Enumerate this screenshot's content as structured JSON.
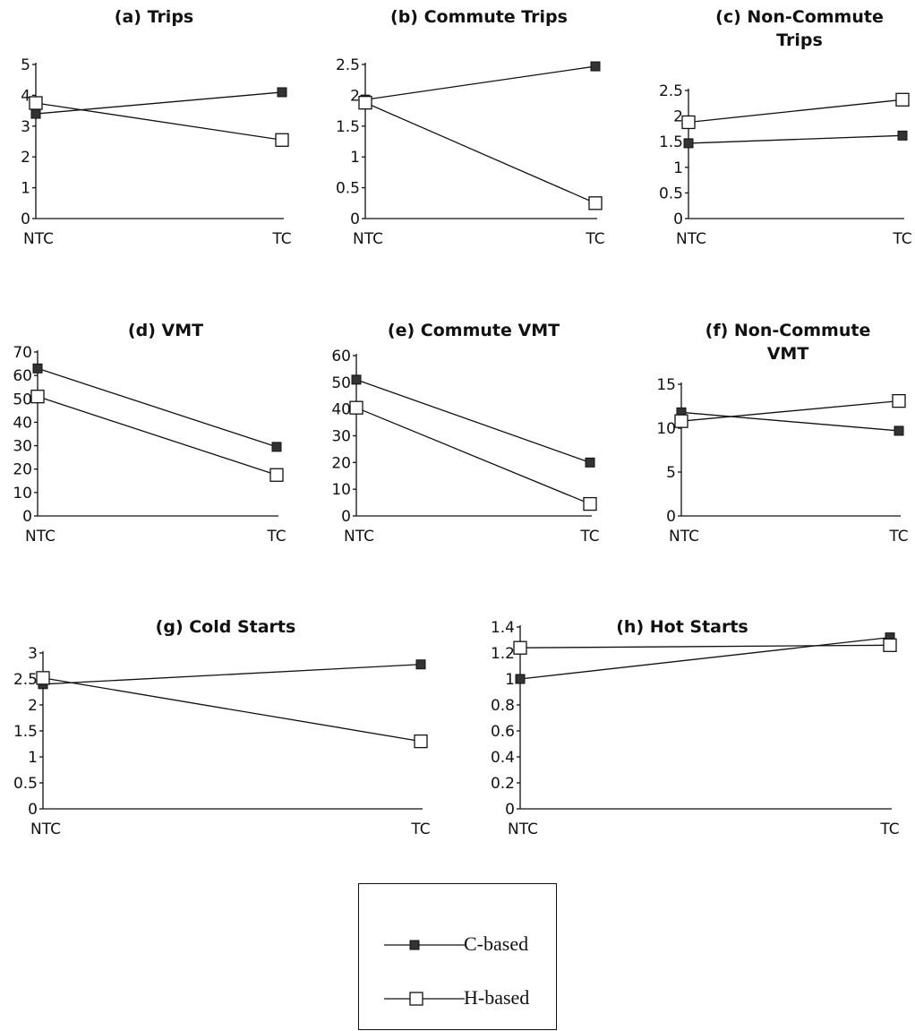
{
  "legend": {
    "items": [
      {
        "label": "C-based",
        "marker": "filled-square"
      },
      {
        "label": "H-based",
        "marker": "open-square"
      }
    ]
  },
  "chart_data": [
    {
      "type": "line",
      "title_lines": [
        "(a)  Trips"
      ],
      "categories": [
        "NTC",
        "TC"
      ],
      "ylim": [
        0,
        5
      ],
      "yticks": [
        "0",
        "1",
        "2",
        "3",
        "4",
        "5"
      ],
      "series": [
        {
          "name": "C-based",
          "values": [
            3.4,
            4.1
          ]
        },
        {
          "name": "H-based",
          "values": [
            3.75,
            2.55
          ]
        }
      ]
    },
    {
      "type": "line",
      "title_lines": [
        "(b)  Commute Trips"
      ],
      "categories": [
        "NTC",
        "TC"
      ],
      "ylim": [
        0,
        2.5
      ],
      "yticks": [
        "0",
        "0.5",
        "1",
        "1.5",
        "2",
        "2.5"
      ],
      "series": [
        {
          "name": "C-based",
          "values": [
            1.93,
            2.47
          ]
        },
        {
          "name": "H-based",
          "values": [
            1.88,
            0.25
          ]
        }
      ]
    },
    {
      "type": "line",
      "title_lines": [
        "(c)  Non-Commute",
        "Trips"
      ],
      "categories": [
        "NTC",
        "TC"
      ],
      "ylim": [
        0,
        2.5
      ],
      "yticks": [
        "0",
        "0.5",
        "1",
        "1.5",
        "2",
        "2.5"
      ],
      "series": [
        {
          "name": "C-based",
          "values": [
            1.47,
            1.62
          ]
        },
        {
          "name": "H-based",
          "values": [
            1.88,
            2.32
          ]
        }
      ]
    },
    {
      "type": "line",
      "title_lines": [
        "(d)  VMT"
      ],
      "categories": [
        "NTC",
        "TC"
      ],
      "ylim": [
        0,
        70
      ],
      "yticks": [
        "0",
        "10",
        "20",
        "30",
        "40",
        "50",
        "60",
        "70"
      ],
      "series": [
        {
          "name": "C-based",
          "values": [
            63,
            29.5
          ]
        },
        {
          "name": "H-based",
          "values": [
            51,
            17.5
          ]
        }
      ]
    },
    {
      "type": "line",
      "title_lines": [
        "(e)  Commute VMT"
      ],
      "categories": [
        "NTC",
        "TC"
      ],
      "ylim": [
        0,
        60
      ],
      "yticks": [
        "0",
        "10",
        "20",
        "30",
        "40",
        "50",
        "60"
      ],
      "series": [
        {
          "name": "C-based",
          "values": [
            51,
            20
          ]
        },
        {
          "name": "H-based",
          "values": [
            40.5,
            4.5
          ]
        }
      ]
    },
    {
      "type": "line",
      "title_lines": [
        "(f)  Non-Commute",
        "VMT"
      ],
      "categories": [
        "NTC",
        "TC"
      ],
      "ylim": [
        0,
        15
      ],
      "yticks": [
        "0",
        "5",
        "10",
        "15"
      ],
      "series": [
        {
          "name": "C-based",
          "values": [
            11.8,
            9.7
          ]
        },
        {
          "name": "H-based",
          "values": [
            10.8,
            13.1
          ]
        }
      ]
    },
    {
      "type": "line",
      "title_lines": [
        "(g)  Cold Starts"
      ],
      "categories": [
        "NTC",
        "TC"
      ],
      "ylim": [
        0,
        3
      ],
      "yticks": [
        "0",
        "0.5",
        "1",
        "1.5",
        "2",
        "2.5",
        "3"
      ],
      "series": [
        {
          "name": "C-based",
          "values": [
            2.4,
            2.78
          ]
        },
        {
          "name": "H-based",
          "values": [
            2.52,
            1.3
          ]
        }
      ]
    },
    {
      "type": "line",
      "title_lines": [
        "(h)  Hot Starts"
      ],
      "categories": [
        "NTC",
        "TC"
      ],
      "ylim": [
        0,
        1.4
      ],
      "yticks": [
        "0",
        "0.2",
        "0.4",
        "0.6",
        "0.8",
        "1",
        "1.2",
        "1.4"
      ],
      "series": [
        {
          "name": "C-based",
          "values": [
            1.0,
            1.32
          ]
        },
        {
          "name": "H-based",
          "values": [
            1.24,
            1.26
          ]
        }
      ]
    }
  ]
}
